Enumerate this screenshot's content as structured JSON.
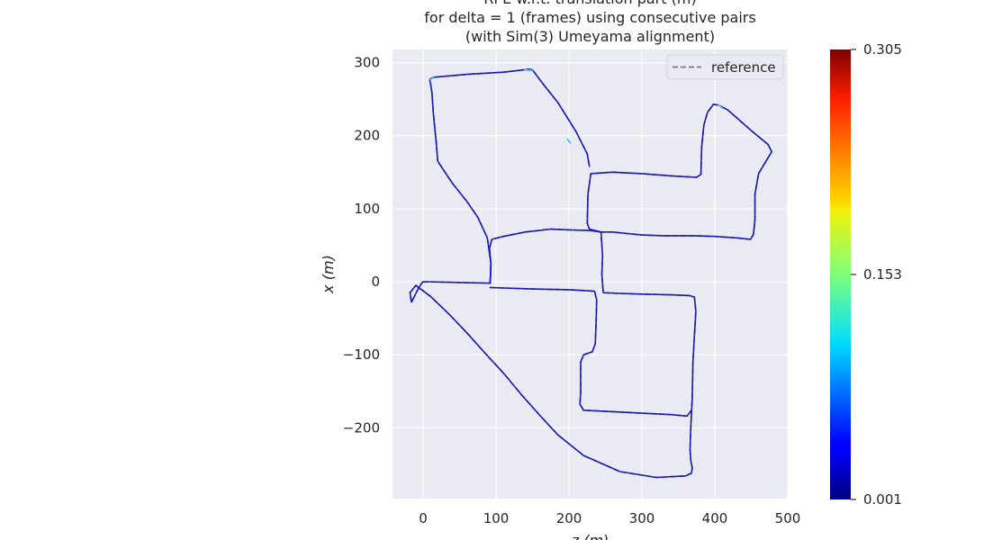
{
  "chart_data": {
    "type": "line",
    "title": [
      "RPE w.r.t. translation part (m)",
      "for delta = 1 (frames) using consecutive pairs",
      "(with Sim(3) Umeyama alignment)"
    ],
    "xlabel": "z (m)",
    "ylabel": "x (m)",
    "xlim": [
      -42,
      500
    ],
    "ylim": [
      -297,
      318
    ],
    "x_ticks": [
      0,
      100,
      200,
      300,
      400,
      500
    ],
    "x_tick_labels": [
      "0",
      "100",
      "200",
      "300",
      "400",
      "500"
    ],
    "y_ticks": [
      -200,
      -100,
      0,
      100,
      200,
      300
    ],
    "y_tick_labels": [
      "−200",
      "−100",
      "0",
      "100",
      "200",
      "300"
    ],
    "grid": true,
    "legend": {
      "placement": "top-right",
      "entries": [
        "reference"
      ]
    },
    "series": [
      {
        "name": "reference",
        "style": "dashed",
        "color": "#6b6b6b",
        "x": [
          0,
          92,
          93,
          91,
          94,
          110,
          140,
          175,
          200,
          230,
          244,
          246,
          245,
          247,
          270,
          300,
          340,
          365,
          372,
          374,
          370,
          369,
          367,
          366,
          367,
          369,
          368,
          360,
          320,
          270,
          220,
          185,
          160,
          135,
          110,
          85,
          60,
          35,
          10,
          -10,
          -18,
          -16,
          -8,
          -2,
          0
        ],
        "y": [
          0,
          -2,
          25,
          45,
          58,
          62,
          68,
          72,
          71,
          70,
          68,
          35,
          10,
          -15,
          -16,
          -17,
          -18,
          -19,
          -21,
          -40,
          -110,
          -160,
          -200,
          -230,
          -245,
          -255,
          -262,
          -266,
          -268,
          -260,
          -238,
          -210,
          -183,
          -155,
          -125,
          -98,
          -70,
          -44,
          -20,
          -5,
          -15,
          -28,
          -12,
          -2,
          0
        ]
      },
      {
        "name": "",
        "style": "solid",
        "color": "#1010b8",
        "x": [
          0,
          92,
          93,
          91,
          94,
          110,
          140,
          175,
          200,
          230,
          244,
          246,
          245,
          247,
          270,
          300,
          340,
          365,
          372,
          374,
          370,
          369,
          367,
          366,
          367,
          369,
          368,
          360,
          320,
          270,
          220,
          185,
          160,
          135,
          110,
          85,
          60,
          35,
          10,
          -10,
          -18,
          -16,
          -8,
          -2,
          0
        ],
        "y": [
          0,
          -2,
          25,
          45,
          58,
          62,
          68,
          72,
          71,
          70,
          68,
          35,
          10,
          -15,
          -16,
          -17,
          -18,
          -19,
          -21,
          -40,
          -110,
          -160,
          -200,
          -230,
          -245,
          -255,
          -262,
          -266,
          -268,
          -260,
          -238,
          -210,
          -183,
          -155,
          -125,
          -98,
          -70,
          -44,
          -20,
          -5,
          -15,
          -28,
          -12,
          -2,
          0
        ]
      },
      {
        "name": "",
        "style": "dashed",
        "color": "#6b6b6b",
        "x": [
          92,
          93,
          88,
          75,
          60,
          40,
          20,
          18,
          14,
          12,
          10,
          9,
          10,
          15,
          60,
          110,
          145,
          150,
          165,
          185,
          210,
          225,
          228
        ],
        "y": [
          -2,
          25,
          60,
          88,
          110,
          135,
          165,
          190,
          230,
          260,
          272,
          276,
          278,
          280,
          284,
          287,
          291,
          290,
          270,
          245,
          205,
          175,
          158
        ]
      },
      {
        "name": "",
        "style": "solid",
        "color": "#1010b8",
        "x": [
          92,
          93,
          88,
          75,
          60,
          40,
          20,
          18,
          14,
          12,
          10,
          9,
          10,
          15,
          60,
          110,
          145,
          150,
          165,
          185,
          210,
          225,
          228
        ],
        "y": [
          -2,
          25,
          60,
          88,
          110,
          135,
          165,
          190,
          230,
          260,
          272,
          276,
          278,
          280,
          284,
          287,
          291,
          290,
          270,
          245,
          205,
          175,
          158
        ]
      },
      {
        "name": "",
        "style": "dashed",
        "color": "#6b6b6b",
        "x": [
          244,
          228,
          225,
          226,
          230,
          260,
          300,
          340,
          375,
          381,
          382,
          385,
          390,
          398,
          405,
          418,
          450,
          473,
          478,
          472,
          460,
          455,
          455,
          453,
          449,
          430,
          400,
          370,
          330,
          300,
          280,
          260,
          244
        ],
        "y": [
          68,
          72,
          80,
          120,
          148,
          150,
          148,
          145,
          143,
          147,
          185,
          215,
          232,
          243,
          242,
          235,
          207,
          188,
          178,
          168,
          148,
          120,
          85,
          65,
          58,
          60,
          62,
          63,
          63,
          64,
          66,
          68,
          68
        ]
      },
      {
        "name": "",
        "style": "solid",
        "color": "#1010b8",
        "x": [
          244,
          228,
          225,
          226,
          230,
          260,
          300,
          340,
          375,
          381,
          382,
          385,
          390,
          398,
          405,
          418,
          450,
          473,
          478,
          472,
          460,
          455,
          455,
          453,
          449,
          430,
          400,
          370,
          330,
          300,
          280,
          260,
          244
        ],
        "y": [
          68,
          72,
          80,
          120,
          148,
          150,
          148,
          145,
          143,
          147,
          185,
          215,
          232,
          243,
          242,
          235,
          207,
          188,
          178,
          168,
          148,
          120,
          85,
          65,
          58,
          60,
          62,
          63,
          63,
          64,
          66,
          68,
          68
        ]
      },
      {
        "name": "",
        "style": "dashed",
        "color": "#6b6b6b",
        "x": [
          92,
          150,
          200,
          235,
          238,
          237,
          236,
          232,
          220,
          216,
          216,
          215,
          220,
          260,
          300,
          340,
          362,
          368
        ],
        "y": [
          -8,
          -10,
          -11,
          -13,
          -25,
          -60,
          -85,
          -96,
          -100,
          -110,
          -150,
          -168,
          -176,
          -178,
          -180,
          -182,
          -184,
          -176
        ]
      },
      {
        "name": "",
        "style": "solid",
        "color": "#1010b8",
        "x": [
          92,
          150,
          200,
          235,
          238,
          237,
          236,
          232,
          220,
          216,
          216,
          215,
          220,
          260,
          300,
          340,
          362,
          368
        ],
        "y": [
          -8,
          -10,
          -11,
          -13,
          -25,
          -60,
          -85,
          -96,
          -100,
          -110,
          -150,
          -168,
          -176,
          -178,
          -180,
          -182,
          -184,
          -176
        ]
      }
    ],
    "highlights": [
      {
        "x": [
          140,
          150
        ],
        "y": [
          290,
          289
        ],
        "color": "#4fc0e8"
      },
      {
        "x": [
          405,
          410
        ],
        "y": [
          242,
          238
        ],
        "color": "#4fc0e8"
      },
      {
        "x": [
          10,
          14
        ],
        "y": [
          277,
          279
        ],
        "color": "#4fc0e8"
      },
      {
        "x": [
          198,
          202
        ],
        "y": [
          195,
          190
        ],
        "color": "#4fc0e8"
      }
    ],
    "colorbar": {
      "min": 0.001,
      "max": 0.305,
      "tick_values": [
        0.001,
        0.153,
        0.305
      ],
      "tick_labels": [
        "0.001",
        "0.153",
        "0.305"
      ],
      "colormap": "jet"
    }
  }
}
